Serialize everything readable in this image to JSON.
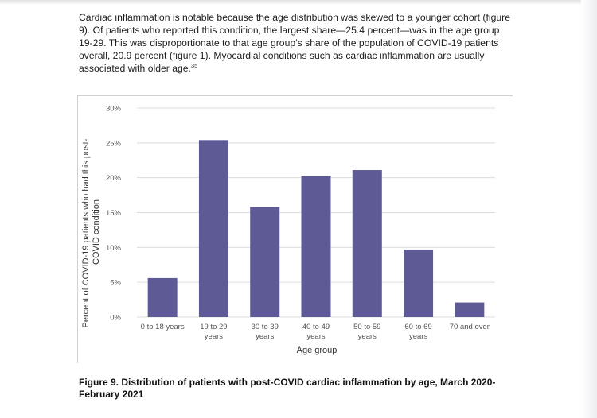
{
  "document": {
    "paragraph_before_ref": "Cardiac inflammation is notable because the age distribution was skewed to a younger cohort (figure 9). Of patients who reported this condition, the largest share—25.4 percent—was in the age group 19-29. This was disproportionate to that age group’s share of the population of COVID-19 patients overall, 20.9 percent (figure 1). Myocardial conditions such as cardiac inflammation are usually associated with older age.",
    "footnote_ref": "35",
    "caption": "Figure 9. Distribution of patients with post-COVID cardiac inflammation by age, March 2020-February 2021"
  },
  "chart_data": {
    "type": "bar",
    "categories": [
      [
        "0 to 18 years"
      ],
      [
        "19 to 29",
        "years"
      ],
      [
        "30 to 39",
        "years"
      ],
      [
        "40 to 49",
        "years"
      ],
      [
        "50 to 59",
        "years"
      ],
      [
        "60 to 69",
        "years"
      ],
      [
        "70 and over"
      ]
    ],
    "values": [
      5.6,
      25.4,
      15.8,
      20.2,
      21.1,
      9.7,
      2.1
    ],
    "yticks": [
      "0%",
      "5%",
      "10%",
      "15%",
      "20%",
      "25%",
      "30%"
    ],
    "ylim": [
      0,
      30
    ],
    "xlabel": "Age group",
    "ylabel_lines": [
      "Percent of COVID-19 patients who had this post-",
      "COVID condition"
    ],
    "bar_color": "#5e5a96",
    "grid": true
  }
}
